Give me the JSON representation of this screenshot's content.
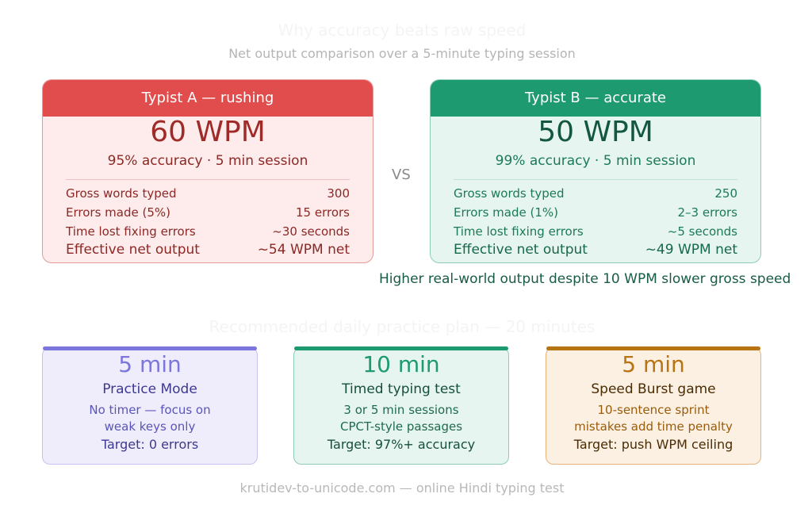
{
  "title": "Why accuracy beats raw speed",
  "subtitle": "Net output comparison over a 5-minute typing session",
  "vs_label": "VS",
  "typist_a": {
    "header": "Typist A — rushing",
    "wpm": "60 WPM",
    "summary": "95% accuracy · 5 min session",
    "rows": [
      {
        "label": "Gross words typed",
        "value": "300"
      },
      {
        "label": "Errors made (5%)",
        "value": "15 errors"
      },
      {
        "label": "Time lost fixing errors",
        "value": "~30 seconds"
      },
      {
        "label": "Effective net output",
        "value": "~54 WPM net"
      }
    ]
  },
  "typist_b": {
    "header": "Typist B — accurate",
    "wpm": "50 WPM",
    "summary": "99% accuracy · 5 min session",
    "rows": [
      {
        "label": "Gross words typed",
        "value": "250"
      },
      {
        "label": "Errors made (1%)",
        "value": "2–3 errors"
      },
      {
        "label": "Time lost fixing errors",
        "value": "~5 seconds"
      },
      {
        "label": "Effective net output",
        "value": "~49 WPM net"
      }
    ]
  },
  "comparison_note": "Higher real-world output despite 10 WPM slower gross speed",
  "plan_title": "Recommended daily practice plan — 20 minutes",
  "plan": [
    {
      "duration": "5 min",
      "name": "Practice Mode",
      "desc_line1": "No timer — focus on",
      "desc_line2": "weak keys only",
      "target": "Target: 0 errors",
      "color": "#7c76dc"
    },
    {
      "duration": "10 min",
      "name": "Timed typing test",
      "desc_line1": "3 or 5 min sessions",
      "desc_line2": "CPCT-style passages",
      "target": "Target: 97%+ accuracy",
      "color": "#1e9a70"
    },
    {
      "duration": "5 min",
      "name": "Speed Burst game",
      "desc_line1": "10-sentence sprint",
      "desc_line2": "mistakes add time penalty",
      "target": "Target: push WPM ceiling",
      "color": "#b77412"
    }
  ],
  "footer": "krutidev-to-unicode.com — online Hindi typing test"
}
